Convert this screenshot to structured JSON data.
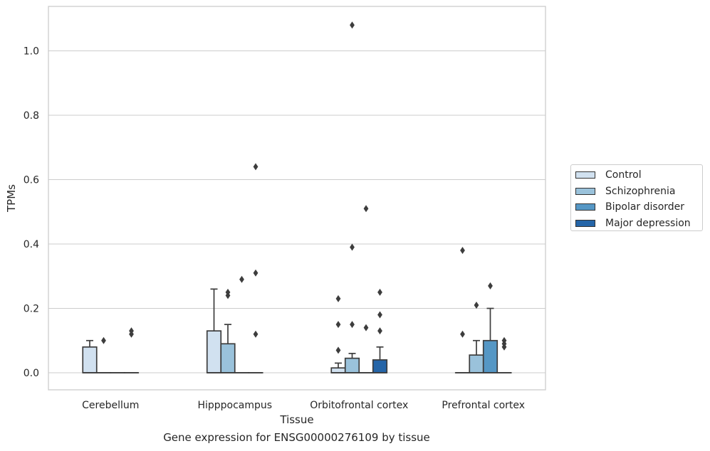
{
  "caption": "Gene expression for ENSG00000276109 by tissue",
  "chart_data": {
    "type": "box",
    "title": "",
    "xlabel": "Tissue",
    "ylabel": "TPMs",
    "ylim": [
      -0.05,
      1.135
    ],
    "yticks": [
      "0.0",
      "0.2",
      "0.4",
      "0.6",
      "0.8",
      "1.0"
    ],
    "grid": "horizontal",
    "legend_position": "right",
    "categories": [
      "Cerebellum",
      "Hipppocampus",
      "Orbitofrontal cortex",
      "Prefrontal cortex"
    ],
    "series": [
      {
        "name": "Control",
        "color": "#d1e1f0",
        "boxes": [
          {
            "q1": 0.0,
            "median": 0.0,
            "q3": 0.08,
            "whisker_low": 0.0,
            "whisker_high": 0.1,
            "outliers": []
          },
          {
            "q1": 0.0,
            "median": 0.0,
            "q3": 0.13,
            "whisker_low": 0.0,
            "whisker_high": 0.26,
            "outliers": []
          },
          {
            "q1": 0.0,
            "median": 0.0,
            "q3": 0.015,
            "whisker_low": 0.0,
            "whisker_high": 0.03,
            "outliers": [
              0.07,
              0.15,
              0.23
            ]
          },
          {
            "q1": 0.0,
            "median": 0.0,
            "q3": 0.0,
            "whisker_low": 0.0,
            "whisker_high": 0.0,
            "outliers": [
              0.12,
              0.38
            ]
          }
        ]
      },
      {
        "name": "Schizophrenia",
        "color": "#9ac2db",
        "boxes": [
          {
            "q1": 0.0,
            "median": 0.0,
            "q3": 0.0,
            "whisker_low": 0.0,
            "whisker_high": 0.0,
            "outliers": [
              0.1
            ]
          },
          {
            "q1": 0.0,
            "median": 0.0,
            "q3": 0.09,
            "whisker_low": 0.0,
            "whisker_high": 0.15,
            "outliers": [
              0.24,
              0.25
            ]
          },
          {
            "q1": 0.0,
            "median": 0.0,
            "q3": 0.045,
            "whisker_low": 0.0,
            "whisker_high": 0.06,
            "outliers": [
              0.15,
              0.39,
              1.08
            ]
          },
          {
            "q1": 0.0,
            "median": 0.0,
            "q3": 0.055,
            "whisker_low": 0.0,
            "whisker_high": 0.1,
            "outliers": [
              0.21
            ]
          }
        ]
      },
      {
        "name": "Bipolar disorder",
        "color": "#5597c5",
        "boxes": [
          {
            "q1": 0.0,
            "median": 0.0,
            "q3": 0.0,
            "whisker_low": 0.0,
            "whisker_high": 0.0,
            "outliers": []
          },
          {
            "q1": 0.0,
            "median": 0.0,
            "q3": 0.0,
            "whisker_low": 0.0,
            "whisker_high": 0.0,
            "outliers": [
              0.29
            ]
          },
          {
            "q1": 0.0,
            "median": 0.0,
            "q3": 0.0,
            "whisker_low": 0.0,
            "whisker_high": 0.0,
            "outliers": [
              0.14,
              0.51
            ]
          },
          {
            "q1": 0.0,
            "median": 0.0,
            "q3": 0.1,
            "whisker_low": 0.0,
            "whisker_high": 0.2,
            "outliers": [
              0.27
            ]
          }
        ]
      },
      {
        "name": "Major depression",
        "color": "#2565a8",
        "boxes": [
          {
            "q1": 0.0,
            "median": 0.0,
            "q3": 0.0,
            "whisker_low": 0.0,
            "whisker_high": 0.0,
            "outliers": [
              0.12,
              0.13
            ]
          },
          {
            "q1": 0.0,
            "median": 0.0,
            "q3": 0.0,
            "whisker_low": 0.0,
            "whisker_high": 0.0,
            "outliers": [
              0.12,
              0.31,
              0.64
            ]
          },
          {
            "q1": 0.0,
            "median": 0.0,
            "q3": 0.04,
            "whisker_low": 0.0,
            "whisker_high": 0.08,
            "outliers": [
              0.13,
              0.18,
              0.25
            ]
          },
          {
            "q1": 0.0,
            "median": 0.0,
            "q3": 0.0,
            "whisker_low": 0.0,
            "whisker_high": 0.0,
            "outliers": [
              0.08,
              0.09,
              0.1
            ]
          }
        ]
      }
    ]
  }
}
